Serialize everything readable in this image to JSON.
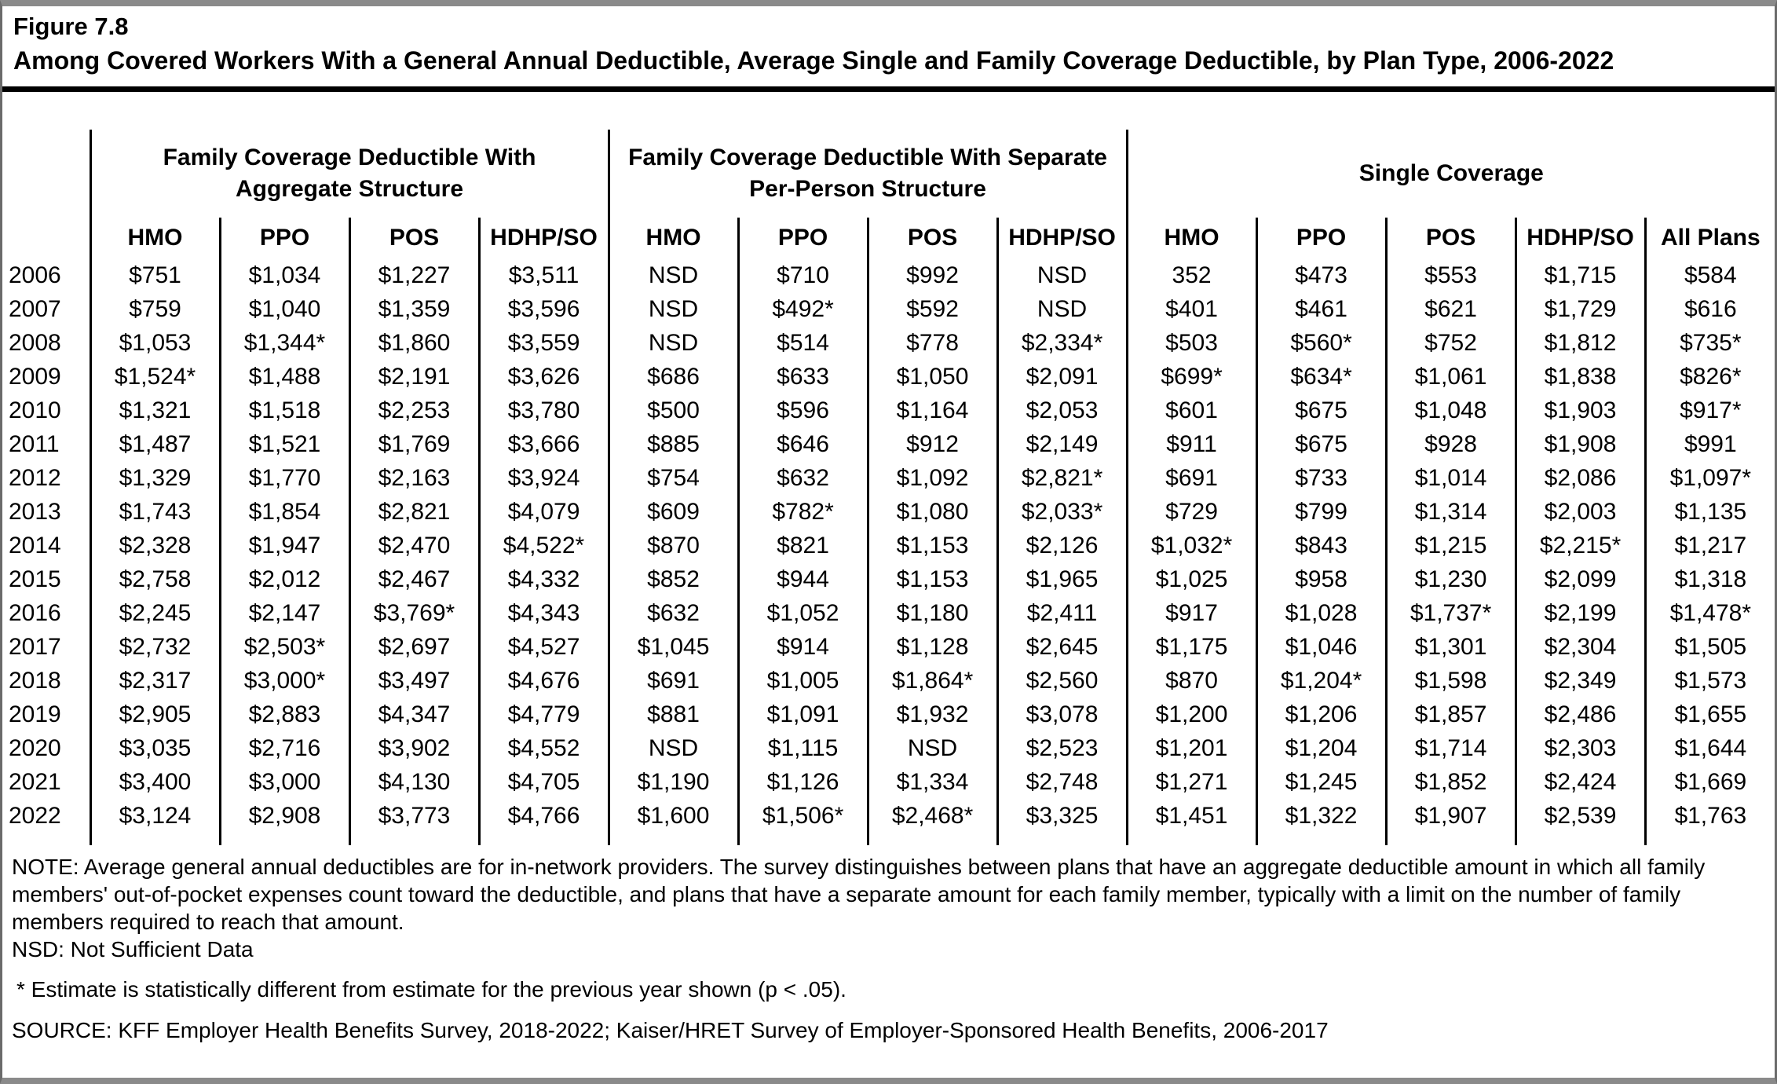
{
  "header": {
    "figure_label": "Figure 7.8",
    "title": "Among Covered Workers With a General Annual Deductible, Average Single and Family Coverage Deductible, by Plan Type, 2006-2022"
  },
  "table": {
    "groups": [
      {
        "label": "Family Coverage Deductible With Aggregate Structure"
      },
      {
        "label": "Family Coverage Deductible With Separate Per-Person Structure"
      },
      {
        "label": "Single Coverage"
      }
    ],
    "columns": [
      "HMO",
      "PPO",
      "POS",
      "HDHP/SO",
      "HMO",
      "PPO",
      "POS",
      "HDHP/SO",
      "HMO",
      "PPO",
      "POS",
      "HDHP/SO",
      "All Plans"
    ],
    "rows": [
      {
        "year": "2006",
        "values": [
          "$751",
          "$1,034",
          "$1,227",
          "$3,511",
          "NSD",
          "$710",
          "$992",
          "NSD",
          "352",
          "$473",
          "$553",
          "$1,715",
          "$584"
        ]
      },
      {
        "year": "2007",
        "values": [
          "$759",
          "$1,040",
          "$1,359",
          "$3,596",
          "NSD",
          "$492*",
          "$592",
          "NSD",
          "$401",
          "$461",
          "$621",
          "$1,729",
          "$616"
        ]
      },
      {
        "year": "2008",
        "values": [
          "$1,053",
          "$1,344*",
          "$1,860",
          "$3,559",
          "NSD",
          "$514",
          "$778",
          "$2,334*",
          "$503",
          "$560*",
          "$752",
          "$1,812",
          "$735*"
        ]
      },
      {
        "year": "2009",
        "values": [
          "$1,524*",
          "$1,488",
          "$2,191",
          "$3,626",
          "$686",
          "$633",
          "$1,050",
          "$2,091",
          "$699*",
          "$634*",
          "$1,061",
          "$1,838",
          "$826*"
        ]
      },
      {
        "year": "2010",
        "values": [
          "$1,321",
          "$1,518",
          "$2,253",
          "$3,780",
          "$500",
          "$596",
          "$1,164",
          "$2,053",
          "$601",
          "$675",
          "$1,048",
          "$1,903",
          "$917*"
        ]
      },
      {
        "year": "2011",
        "values": [
          "$1,487",
          "$1,521",
          "$1,769",
          "$3,666",
          "$885",
          "$646",
          "$912",
          "$2,149",
          "$911",
          "$675",
          "$928",
          "$1,908",
          "$991"
        ]
      },
      {
        "year": "2012",
        "values": [
          "$1,329",
          "$1,770",
          "$2,163",
          "$3,924",
          "$754",
          "$632",
          "$1,092",
          "$2,821*",
          "$691",
          "$733",
          "$1,014",
          "$2,086",
          "$1,097*"
        ]
      },
      {
        "year": "2013",
        "values": [
          "$1,743",
          "$1,854",
          "$2,821",
          "$4,079",
          "$609",
          "$782*",
          "$1,080",
          "$2,033*",
          "$729",
          "$799",
          "$1,314",
          "$2,003",
          "$1,135"
        ]
      },
      {
        "year": "2014",
        "values": [
          "$2,328",
          "$1,947",
          "$2,470",
          "$4,522*",
          "$870",
          "$821",
          "$1,153",
          "$2,126",
          "$1,032*",
          "$843",
          "$1,215",
          "$2,215*",
          "$1,217"
        ]
      },
      {
        "year": "2015",
        "values": [
          "$2,758",
          "$2,012",
          "$2,467",
          "$4,332",
          "$852",
          "$944",
          "$1,153",
          "$1,965",
          "$1,025",
          "$958",
          "$1,230",
          "$2,099",
          "$1,318"
        ]
      },
      {
        "year": "2016",
        "values": [
          "$2,245",
          "$2,147",
          "$3,769*",
          "$4,343",
          "$632",
          "$1,052",
          "$1,180",
          "$2,411",
          "$917",
          "$1,028",
          "$1,737*",
          "$2,199",
          "$1,478*"
        ]
      },
      {
        "year": "2017",
        "values": [
          "$2,732",
          "$2,503*",
          "$2,697",
          "$4,527",
          "$1,045",
          "$914",
          "$1,128",
          "$2,645",
          "$1,175",
          "$1,046",
          "$1,301",
          "$2,304",
          "$1,505"
        ]
      },
      {
        "year": "2018",
        "values": [
          "$2,317",
          "$3,000*",
          "$3,497",
          "$4,676",
          "$691",
          "$1,005",
          "$1,864*",
          "$2,560",
          "$870",
          "$1,204*",
          "$1,598",
          "$2,349",
          "$1,573"
        ]
      },
      {
        "year": "2019",
        "values": [
          "$2,905",
          "$2,883",
          "$4,347",
          "$4,779",
          "$881",
          "$1,091",
          "$1,932",
          "$3,078",
          "$1,200",
          "$1,206",
          "$1,857",
          "$2,486",
          "$1,655"
        ]
      },
      {
        "year": "2020",
        "values": [
          "$3,035",
          "$2,716",
          "$3,902",
          "$4,552",
          "NSD",
          "$1,115",
          "NSD",
          "$2,523",
          "$1,201",
          "$1,204",
          "$1,714",
          "$2,303",
          "$1,644"
        ]
      },
      {
        "year": "2021",
        "values": [
          "$3,400",
          "$3,000",
          "$4,130",
          "$4,705",
          "$1,190",
          "$1,126",
          "$1,334",
          "$2,748",
          "$1,271",
          "$1,245",
          "$1,852",
          "$2,424",
          "$1,669"
        ]
      },
      {
        "year": "2022",
        "values": [
          "$3,124",
          "$2,908",
          "$3,773",
          "$4,766",
          "$1,600",
          "$1,506*",
          "$2,468*",
          "$3,325",
          "$1,451",
          "$1,322",
          "$1,907",
          "$2,539",
          "$1,763"
        ]
      }
    ]
  },
  "notes": {
    "note": "NOTE: Average general annual deductibles are for in-network providers. The survey distinguishes between plans that have an aggregate deductible amount in which all family members' out-of-pocket expenses count toward the deductible, and plans that have a separate amount for each family member, typically with a limit on the number of family members required to reach that amount.",
    "nsd": "NSD: Not Sufficient Data",
    "asterisk": "* Estimate is statistically different from estimate for the previous year shown (p < .05).",
    "source": "SOURCE: KFF Employer Health Benefits Survey, 2018-2022; Kaiser/HRET Survey of Employer-Sponsored Health Benefits, 2006-2017"
  }
}
